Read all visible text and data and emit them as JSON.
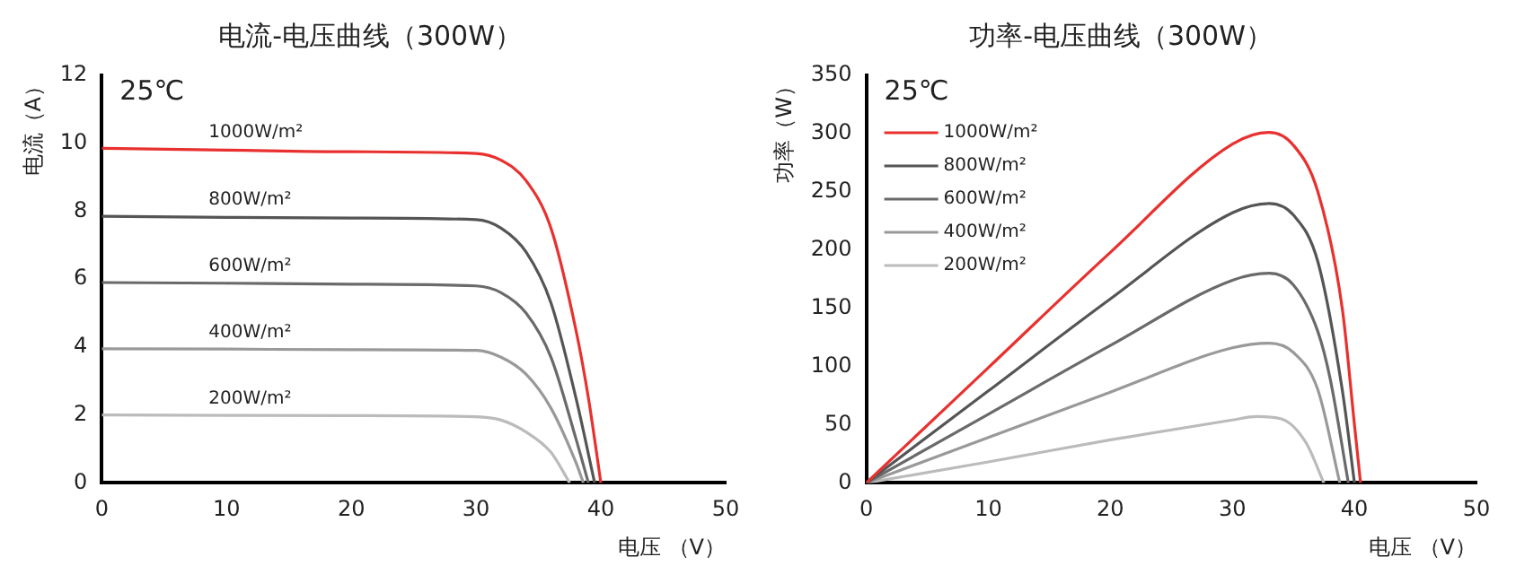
{
  "chart_data": [
    {
      "type": "line",
      "title": "电流-电压曲线（300W）",
      "xlabel": "电压 （V）",
      "ylabel": "电流（A）",
      "annotations": [
        "25℃"
      ],
      "xlim": [
        0,
        50
      ],
      "xticks": [
        0,
        10,
        20,
        30,
        40,
        50
      ],
      "ylim": [
        0,
        12
      ],
      "yticks": [
        0,
        2,
        4,
        6,
        8,
        10,
        12
      ],
      "grid": false,
      "legend": false,
      "marker": "none",
      "line_style": "solid",
      "series": [
        {
          "name": "1000W/m²",
          "color": "#e8312f",
          "x": [
            0,
            10,
            20,
            30,
            32,
            34,
            36,
            38,
            39,
            40
          ],
          "values": [
            9.85,
            9.8,
            9.75,
            9.7,
            9.5,
            8.9,
            7.5,
            4.5,
            2.5,
            0
          ]
        },
        {
          "name": "800W/m²",
          "color": "#555555",
          "x": [
            0,
            10,
            20,
            30,
            32,
            34,
            36,
            38,
            39.5
          ],
          "values": [
            7.85,
            7.82,
            7.8,
            7.75,
            7.5,
            6.8,
            5.3,
            2.5,
            0
          ]
        },
        {
          "name": "600W/m²",
          "color": "#6a6a6a",
          "x": [
            0,
            10,
            20,
            30,
            32,
            34,
            36,
            38,
            39
          ],
          "values": [
            5.9,
            5.88,
            5.85,
            5.8,
            5.6,
            5,
            3.7,
            1.3,
            0
          ]
        },
        {
          "name": "400W/m²",
          "color": "#999999",
          "x": [
            0,
            10,
            20,
            30,
            32,
            34,
            36,
            38,
            38.6
          ],
          "values": [
            3.95,
            3.94,
            3.92,
            3.9,
            3.7,
            3.2,
            2.2,
            0.6,
            0
          ]
        },
        {
          "name": "200W/m²",
          "color": "#bbbbbb",
          "x": [
            0,
            10,
            20,
            30,
            32,
            34,
            36,
            37.5
          ],
          "values": [
            2,
            1.99,
            1.98,
            1.95,
            1.85,
            1.5,
            0.9,
            0
          ]
        }
      ]
    },
    {
      "type": "line",
      "title": "功率-电压曲线（300W）",
      "xlabel": "电压 （V）",
      "ylabel": "功率（W）",
      "annotations": [
        "25℃"
      ],
      "xlim": [
        0,
        50
      ],
      "xticks": [
        0,
        10,
        20,
        30,
        40,
        50
      ],
      "ylim": [
        0,
        350
      ],
      "yticks": [
        0,
        50,
        100,
        150,
        200,
        250,
        300,
        350
      ],
      "grid": false,
      "legend": "top left",
      "marker": "none",
      "line_style": "solid",
      "series": [
        {
          "name": "1000W/m²",
          "color": "#e8312f",
          "x": [
            0,
            10,
            20,
            30,
            33,
            35,
            37,
            39,
            40,
            40.5
          ],
          "values": [
            0,
            99,
            198,
            291,
            301,
            290,
            250,
            150,
            50,
            0
          ]
        },
        {
          "name": "800W/m²",
          "color": "#555555",
          "x": [
            0,
            10,
            20,
            30,
            33,
            35,
            37,
            39,
            40
          ],
          "values": [
            0,
            79,
            158,
            232,
            240,
            230,
            190,
            80,
            0
          ]
        },
        {
          "name": "600W/m²",
          "color": "#6a6a6a",
          "x": [
            0,
            10,
            20,
            30,
            33,
            35,
            37,
            38,
            39.5
          ],
          "values": [
            0,
            59,
            118,
            174,
            180,
            170,
            130,
            90,
            0
          ]
        },
        {
          "name": "400W/m²",
          "color": "#999999",
          "x": [
            0,
            10,
            20,
            30,
            33,
            35,
            37,
            38.8
          ],
          "values": [
            0,
            39,
            78,
            116,
            120,
            112,
            80,
            0
          ]
        },
        {
          "name": "200W/m²",
          "color": "#bbbbbb",
          "x": [
            0,
            10,
            20,
            30,
            32,
            34,
            36,
            37.5
          ],
          "values": [
            0,
            18,
            37,
            54,
            57,
            55,
            35,
            0
          ]
        }
      ]
    }
  ]
}
